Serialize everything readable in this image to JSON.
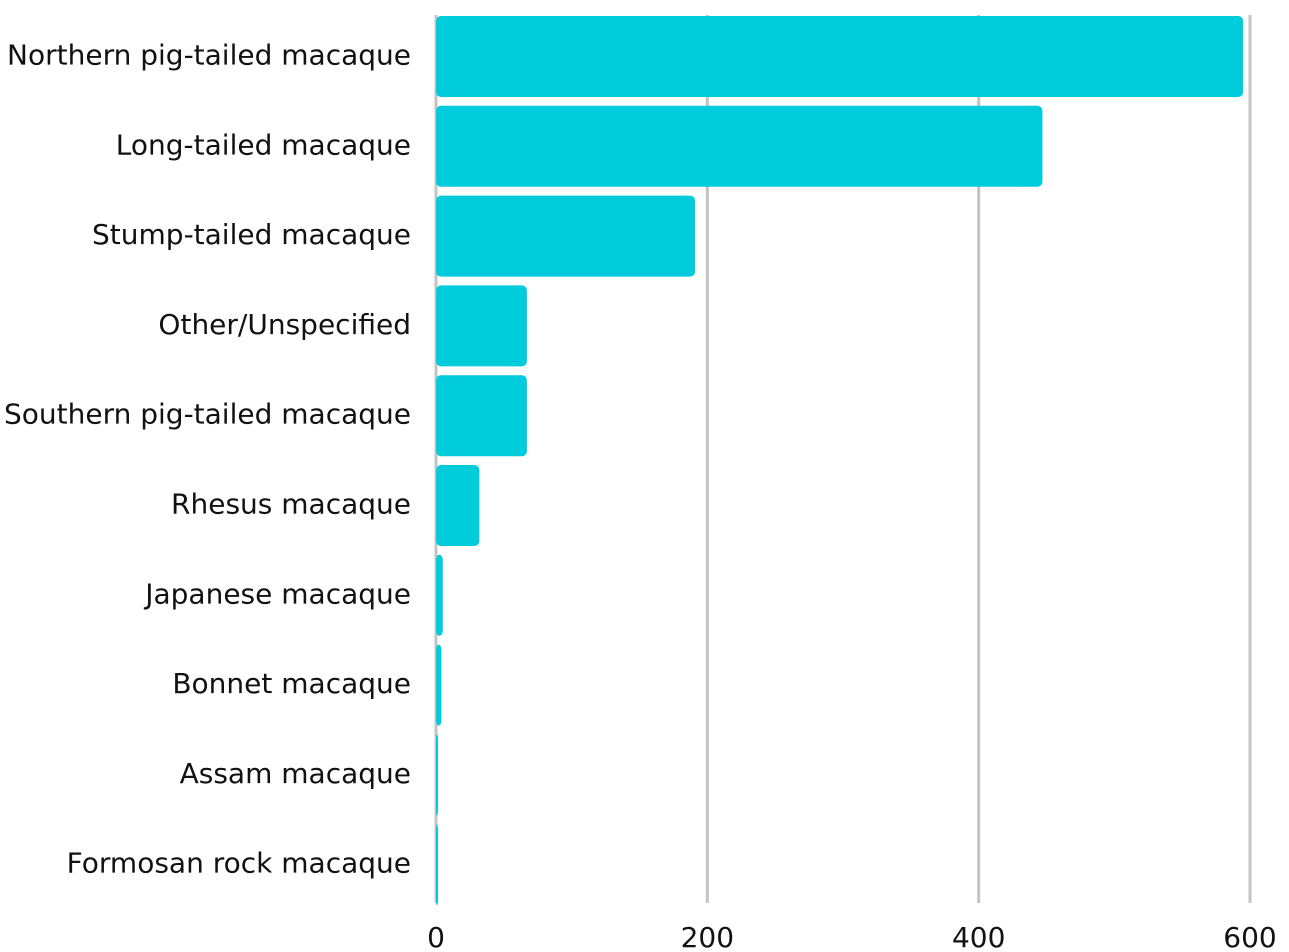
{
  "chart_data": {
    "type": "bar",
    "orientation": "horizontal",
    "categories": [
      "Northern pig-tailed macaque",
      "Long-tailed macaque",
      "Stump-tailed macaque",
      "Other/Unspecified",
      "Southern pig-tailed macaque",
      "Rhesus macaque",
      "Japanese macaque",
      "Bonnet macaque",
      "Assam macaque",
      "Formosan rock macaque"
    ],
    "values": [
      595,
      447,
      191,
      67,
      67,
      32,
      5,
      4,
      1,
      1
    ],
    "xlim": [
      0,
      600
    ],
    "xticks": [
      0,
      200,
      400,
      600
    ],
    "title": "",
    "xlabel": "",
    "ylabel": "",
    "grid": "vertical",
    "legend": "none",
    "colors": {
      "bar": "#00CCDB",
      "grid": "#C4C4C4",
      "text": "#111111"
    }
  }
}
